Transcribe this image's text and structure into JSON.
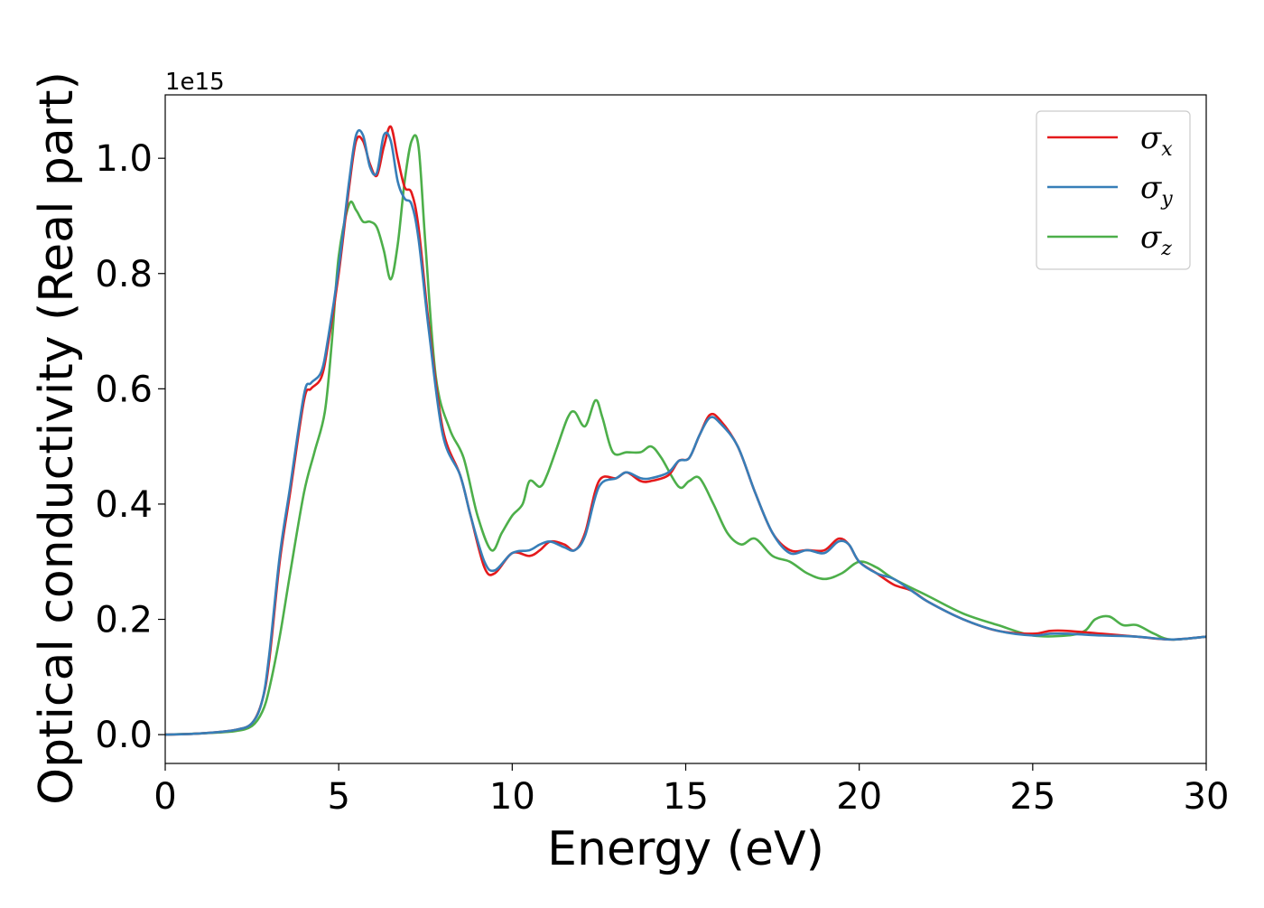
{
  "chart_data": {
    "type": "line",
    "xlabel": "Energy (eV)",
    "ylabel": "Optical conductivity (Real part)",
    "y_offset_text": "1e15",
    "y_scale": 1000000000000000.0,
    "xlim": [
      0,
      30
    ],
    "ylim": [
      -0.05,
      1.11
    ],
    "x_ticks": [
      0,
      5,
      10,
      15,
      20,
      25,
      30
    ],
    "x_tick_labels": [
      "0",
      "5",
      "10",
      "15",
      "20",
      "25",
      "30"
    ],
    "y_ticks": [
      0.0,
      0.2,
      0.4,
      0.6,
      0.8,
      1.0
    ],
    "y_tick_labels": [
      "0.0",
      "0.2",
      "0.4",
      "0.6",
      "0.8",
      "1.0"
    ],
    "grid": false,
    "legend_position": "top-right",
    "series": [
      {
        "name": "σx",
        "symbol": "σ",
        "subscript": "x",
        "color": "#e41a1c",
        "x": [
          0,
          1,
          2,
          2.5,
          2.8,
          3.0,
          3.3,
          3.6,
          4.0,
          4.2,
          4.5,
          4.7,
          5.0,
          5.3,
          5.5,
          5.7,
          5.9,
          6.1,
          6.3,
          6.5,
          6.7,
          6.9,
          7.1,
          7.3,
          7.6,
          8.0,
          8.5,
          8.8,
          9.2,
          9.5,
          10.0,
          10.5,
          10.8,
          11.1,
          11.5,
          11.8,
          12.1,
          12.5,
          13.0,
          13.3,
          13.7,
          14.0,
          14.5,
          14.8,
          15.1,
          15.4,
          15.7,
          16.0,
          16.5,
          17.0,
          17.5,
          18.0,
          18.5,
          19.0,
          19.4,
          19.7,
          20.0,
          20.5,
          21.0,
          21.5,
          22.0,
          23.0,
          24.0,
          25.0,
          25.5,
          26.0,
          27.0,
          28.0,
          29.0,
          30.0
        ],
        "y": [
          0,
          0.002,
          0.008,
          0.02,
          0.06,
          0.13,
          0.3,
          0.42,
          0.58,
          0.6,
          0.62,
          0.68,
          0.8,
          0.95,
          1.03,
          1.03,
          0.99,
          0.97,
          1.02,
          1.055,
          1.0,
          0.95,
          0.94,
          0.88,
          0.71,
          0.53,
          0.45,
          0.38,
          0.29,
          0.28,
          0.315,
          0.31,
          0.32,
          0.335,
          0.33,
          0.32,
          0.35,
          0.44,
          0.445,
          0.455,
          0.44,
          0.44,
          0.45,
          0.475,
          0.48,
          0.52,
          0.555,
          0.545,
          0.5,
          0.42,
          0.35,
          0.32,
          0.32,
          0.32,
          0.34,
          0.33,
          0.3,
          0.28,
          0.26,
          0.25,
          0.23,
          0.2,
          0.18,
          0.175,
          0.18,
          0.18,
          0.175,
          0.17,
          0.165,
          0.17
        ]
      },
      {
        "name": "σy",
        "symbol": "σ",
        "subscript": "y",
        "color": "#377eb8",
        "x": [
          0,
          1,
          2,
          2.5,
          2.8,
          3.0,
          3.3,
          3.6,
          4.0,
          4.2,
          4.5,
          4.7,
          5.0,
          5.3,
          5.5,
          5.7,
          5.9,
          6.1,
          6.3,
          6.5,
          6.7,
          6.9,
          7.1,
          7.3,
          7.6,
          8.0,
          8.5,
          8.8,
          9.2,
          9.5,
          10.0,
          10.5,
          10.8,
          11.1,
          11.5,
          11.8,
          12.1,
          12.5,
          13.0,
          13.3,
          13.7,
          14.0,
          14.5,
          14.8,
          15.1,
          15.4,
          15.7,
          16.0,
          16.5,
          17.0,
          17.5,
          18.0,
          18.5,
          19.0,
          19.4,
          19.7,
          20.0,
          20.5,
          21.0,
          21.5,
          22.0,
          23.0,
          24.0,
          25.0,
          25.5,
          26.0,
          27.0,
          28.0,
          29.0,
          30.0
        ],
        "y": [
          0,
          0.002,
          0.008,
          0.02,
          0.06,
          0.14,
          0.31,
          0.43,
          0.59,
          0.61,
          0.63,
          0.69,
          0.81,
          0.96,
          1.04,
          1.04,
          0.985,
          0.975,
          1.04,
          1.03,
          0.96,
          0.93,
          0.92,
          0.86,
          0.7,
          0.52,
          0.45,
          0.38,
          0.3,
          0.285,
          0.315,
          0.32,
          0.33,
          0.335,
          0.325,
          0.32,
          0.345,
          0.43,
          0.445,
          0.455,
          0.445,
          0.445,
          0.455,
          0.475,
          0.48,
          0.52,
          0.55,
          0.54,
          0.5,
          0.42,
          0.35,
          0.315,
          0.32,
          0.315,
          0.335,
          0.33,
          0.3,
          0.28,
          0.27,
          0.25,
          0.23,
          0.2,
          0.18,
          0.172,
          0.175,
          0.175,
          0.172,
          0.17,
          0.165,
          0.17
        ]
      },
      {
        "name": "σz",
        "symbol": "σ",
        "subscript": "z",
        "color": "#4daf4a",
        "x": [
          0,
          1,
          2,
          2.5,
          2.8,
          3.0,
          3.3,
          3.6,
          4.0,
          4.3,
          4.6,
          4.8,
          5.0,
          5.3,
          5.5,
          5.7,
          5.9,
          6.1,
          6.3,
          6.5,
          6.7,
          6.9,
          7.1,
          7.3,
          7.5,
          7.8,
          8.2,
          8.6,
          9.0,
          9.4,
          9.7,
          10.0,
          10.3,
          10.5,
          10.8,
          11.0,
          11.3,
          11.6,
          11.8,
          12.1,
          12.4,
          12.6,
          12.9,
          13.3,
          13.7,
          14.0,
          14.3,
          14.8,
          15.1,
          15.4,
          15.8,
          16.2,
          16.6,
          17.0,
          17.5,
          18.0,
          18.5,
          19.0,
          19.5,
          20.0,
          20.5,
          21.0,
          22.0,
          23.0,
          24.0,
          25.0,
          26.0,
          26.5,
          26.8,
          27.2,
          27.6,
          28.0,
          28.5,
          29.0,
          30.0
        ],
        "y": [
          0,
          0.002,
          0.006,
          0.015,
          0.04,
          0.08,
          0.17,
          0.28,
          0.42,
          0.49,
          0.56,
          0.68,
          0.83,
          0.92,
          0.91,
          0.89,
          0.89,
          0.88,
          0.84,
          0.79,
          0.85,
          0.96,
          1.03,
          1.02,
          0.85,
          0.62,
          0.53,
          0.48,
          0.38,
          0.32,
          0.35,
          0.38,
          0.4,
          0.44,
          0.43,
          0.45,
          0.5,
          0.55,
          0.56,
          0.535,
          0.58,
          0.55,
          0.49,
          0.49,
          0.49,
          0.5,
          0.48,
          0.43,
          0.44,
          0.445,
          0.4,
          0.35,
          0.33,
          0.34,
          0.31,
          0.3,
          0.28,
          0.27,
          0.28,
          0.3,
          0.29,
          0.27,
          0.24,
          0.21,
          0.19,
          0.172,
          0.172,
          0.18,
          0.2,
          0.205,
          0.19,
          0.19,
          0.175,
          0.165,
          0.17
        ]
      }
    ]
  }
}
